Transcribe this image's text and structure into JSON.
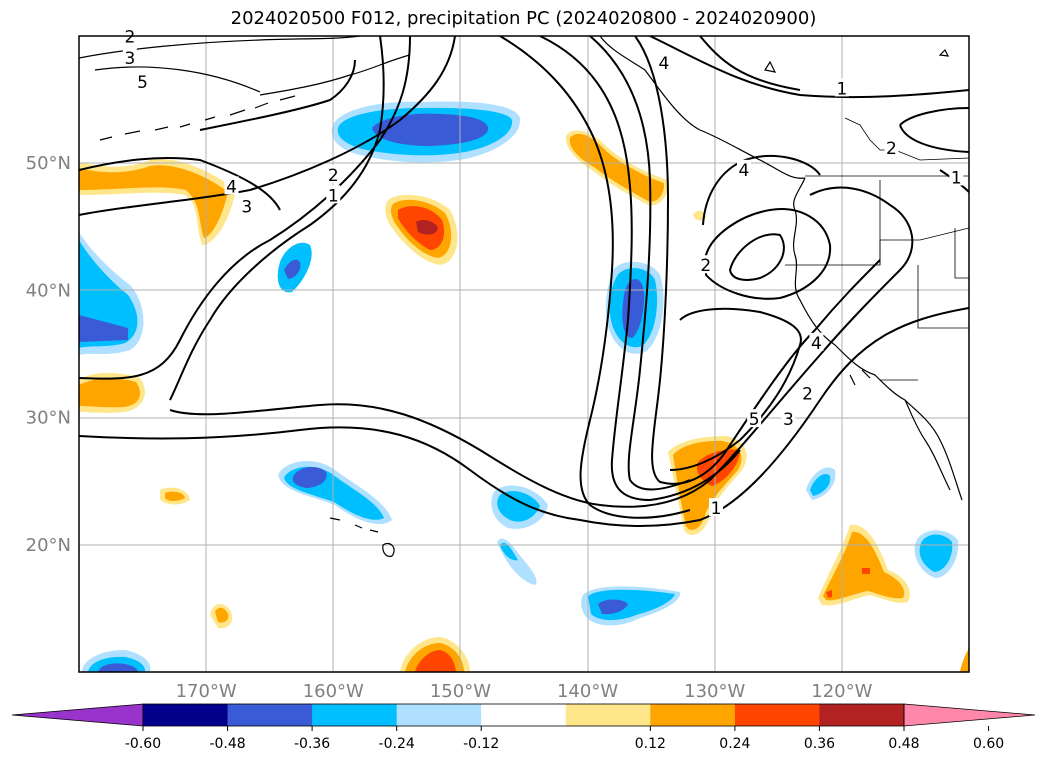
{
  "title": "2024020500 F012, precipitation PC (2024020800 - 2024020900)",
  "map": {
    "lon_range": [
      -180,
      -110
    ],
    "lat_range": [
      10,
      60
    ],
    "lat_labels": [
      {
        "lat": 50,
        "text": "50°N"
      },
      {
        "lat": 40,
        "text": "40°N"
      },
      {
        "lat": 30,
        "text": "30°N"
      },
      {
        "lat": 20,
        "text": "20°N"
      }
    ],
    "lon_labels": [
      {
        "lon": -170,
        "text": "170°W"
      },
      {
        "lon": -160,
        "text": "160°W"
      },
      {
        "lon": -150,
        "text": "150°W"
      },
      {
        "lon": -140,
        "text": "140°W"
      },
      {
        "lon": -130,
        "text": "130°W"
      },
      {
        "lon": -120,
        "text": "120°W"
      }
    ],
    "contour_labels": [
      {
        "text": "2",
        "lon": -176,
        "lat": 59.9
      },
      {
        "text": "3",
        "lon": -176,
        "lat": 58.2
      },
      {
        "text": "5",
        "lon": -175,
        "lat": 56.3
      },
      {
        "text": "4",
        "lon": -168,
        "lat": 48.1
      },
      {
        "text": "3",
        "lon": -166.8,
        "lat": 46.5
      },
      {
        "text": "2",
        "lon": -160,
        "lat": 49.0
      },
      {
        "text": "1",
        "lon": -160,
        "lat": 47.4
      },
      {
        "text": "4",
        "lon": -134,
        "lat": 57.8
      },
      {
        "text": "4",
        "lon": -127.7,
        "lat": 49.4
      },
      {
        "text": "2",
        "lon": -130.7,
        "lat": 41.9
      },
      {
        "text": "1",
        "lon": -120,
        "lat": 55.8
      },
      {
        "text": "2",
        "lon": -116.1,
        "lat": 51.1
      },
      {
        "text": "1",
        "lon": -111,
        "lat": 48.8
      },
      {
        "text": "4",
        "lon": -122,
        "lat": 35.8
      },
      {
        "text": "2",
        "lon": -122.7,
        "lat": 31.8
      },
      {
        "text": "3",
        "lon": -124.2,
        "lat": 29.8
      },
      {
        "text": "5",
        "lon": -126.9,
        "lat": 29.8
      },
      {
        "text": "1",
        "lon": -129.9,
        "lat": 22.8
      }
    ]
  },
  "colorbar": {
    "ticks": [
      "-0.60",
      "-0.48",
      "-0.36",
      "-0.24",
      "-0.12",
      "0.12",
      "0.24",
      "0.36",
      "0.48",
      "0.60"
    ],
    "colors": [
      "#9933cc",
      "#00008b",
      "#3a5bd6",
      "#00bfff",
      "#b0e0ff",
      "#ffffff",
      "#ffe68a",
      "#ffa500",
      "#ff4500",
      "#b22222",
      "#ff88aa"
    ]
  },
  "colors": {
    "gridline": "#b0b0b0",
    "coastline": "#000000",
    "label_gray": "#808080"
  }
}
